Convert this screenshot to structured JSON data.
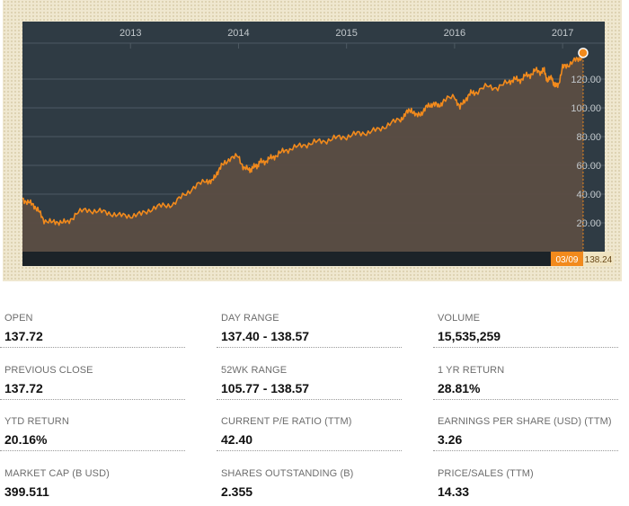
{
  "chart_data": {
    "type": "area",
    "x_ticks": [
      "2013",
      "2014",
      "2015",
      "2016",
      "2017"
    ],
    "y_ticks": [
      "20.00",
      "40.00",
      "60.00",
      "80.00",
      "100.00",
      "120.00"
    ],
    "ylim": [
      0,
      145
    ],
    "x": [
      2012.0,
      2012.05,
      2012.1,
      2012.15,
      2012.2,
      2012.28,
      2012.35,
      2012.42,
      2012.5,
      2012.6,
      2012.7,
      2012.8,
      2012.9,
      2013.0,
      2013.1,
      2013.2,
      2013.3,
      2013.4,
      2013.5,
      2013.6,
      2013.7,
      2013.75,
      2013.8,
      2013.85,
      2013.92,
      2014.0,
      2014.05,
      2014.1,
      2014.13,
      2014.17,
      2014.2,
      2014.25,
      2014.3,
      2014.35,
      2014.42,
      2014.5,
      2014.6,
      2014.7,
      2014.8,
      2014.9,
      2015.0,
      2015.1,
      2015.2,
      2015.3,
      2015.4,
      2015.5,
      2015.55,
      2015.6,
      2015.65,
      2015.7,
      2015.75,
      2015.8,
      2015.85,
      2015.9,
      2016.0,
      2016.05,
      2016.1,
      2016.15,
      2016.2,
      2016.3,
      2016.4,
      2016.5,
      2016.55,
      2016.6,
      2016.65,
      2016.7,
      2016.75,
      2016.8,
      2016.83,
      2016.86,
      2016.9,
      2016.93,
      2016.96,
      2017.0,
      2017.05,
      2017.12,
      2017.17,
      2017.19
    ],
    "values": [
      37,
      34,
      33,
      28,
      22,
      20,
      21,
      20,
      27,
      29,
      28,
      27,
      25,
      25,
      26,
      30,
      32,
      33,
      40,
      45,
      50,
      48,
      55,
      60,
      65,
      66,
      58,
      57,
      58,
      60,
      62,
      63,
      65,
      67,
      70,
      72,
      74,
      76,
      77,
      79,
      80,
      82,
      83,
      85,
      89,
      92,
      96,
      99,
      94,
      97,
      101,
      103,
      101,
      105,
      108,
      100,
      106,
      110,
      111,
      115,
      114,
      118,
      120,
      119,
      122,
      123,
      126,
      125,
      126,
      119,
      121,
      115,
      116,
      128,
      130,
      133,
      135,
      138.24
    ],
    "end_date": "03/09",
    "end_value": "138.24",
    "colors": {
      "line": "#f28a1c",
      "plot_bg": "#2f3b44",
      "fill": "#5b4d43",
      "grid": "#4e5a63",
      "axis_text": "#c2c8cc"
    }
  },
  "stats": [
    {
      "label": "OPEN",
      "value": "137.72"
    },
    {
      "label": "DAY RANGE",
      "value": "137.40 - 138.57"
    },
    {
      "label": "VOLUME",
      "value": "15,535,259"
    },
    {
      "label": "PREVIOUS CLOSE",
      "value": "137.72"
    },
    {
      "label": "52WK RANGE",
      "value": "105.77 - 138.57"
    },
    {
      "label": "1 YR RETURN",
      "value": "28.81%"
    },
    {
      "label": "YTD RETURN",
      "value": "20.16%"
    },
    {
      "label": "CURRENT P/E RATIO (TTM)",
      "value": "42.40"
    },
    {
      "label": "EARNINGS PER SHARE (USD) (TTM)",
      "value": "3.26"
    },
    {
      "label": "MARKET CAP (B USD)",
      "value": "399.511"
    },
    {
      "label": "SHARES OUTSTANDING (B)",
      "value": "2.355"
    },
    {
      "label": "PRICE/SALES (TTM)",
      "value": "14.33"
    }
  ]
}
